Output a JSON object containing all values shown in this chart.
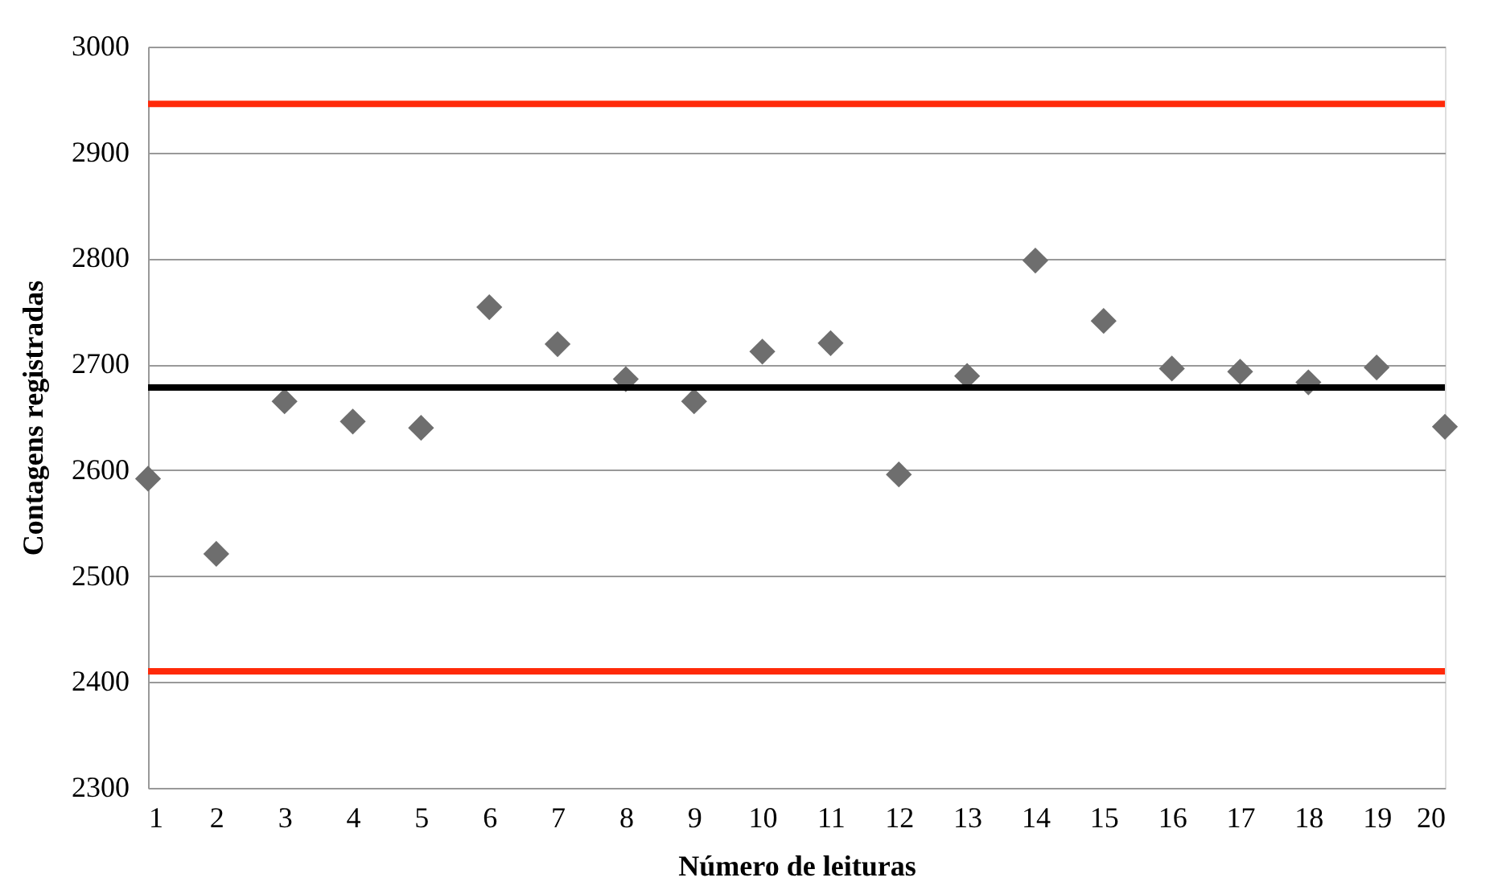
{
  "chart_data": {
    "type": "scatter",
    "xlabel": "Número de leituras",
    "ylabel": "Contagens registradas",
    "x": [
      1,
      2,
      3,
      4,
      5,
      6,
      7,
      8,
      9,
      10,
      11,
      12,
      13,
      14,
      15,
      16,
      17,
      18,
      19,
      20
    ],
    "series": [
      {
        "color": "#6e6e6e",
        "values": [
          2592,
          2521,
          2665,
          2646,
          2640,
          2754,
          2719,
          2686,
          2665,
          2712,
          2720,
          2596,
          2689,
          2798,
          2741,
          2696,
          2693,
          2683,
          2697,
          2641
        ]
      }
    ],
    "xlim": [
      1,
      20
    ],
    "xticks": [
      1,
      2,
      3,
      4,
      5,
      6,
      7,
      8,
      9,
      10,
      11,
      12,
      13,
      14,
      15,
      16,
      17,
      18,
      19,
      20
    ],
    "ylim": [
      2300,
      3000
    ],
    "yticks": [
      2300,
      2400,
      2500,
      2600,
      2700,
      2800,
      2900,
      3000
    ],
    "ref_lines": [
      {
        "axis": "y",
        "value": 2946,
        "color": "#ff2a0a",
        "line_style": "solid"
      },
      {
        "axis": "y",
        "value": 2678,
        "color": "#000000",
        "line_style": "solid"
      },
      {
        "axis": "y",
        "value": 2410,
        "color": "#ff2a0a",
        "line_style": "solid"
      }
    ],
    "grid": "y",
    "marker": "diamond"
  }
}
